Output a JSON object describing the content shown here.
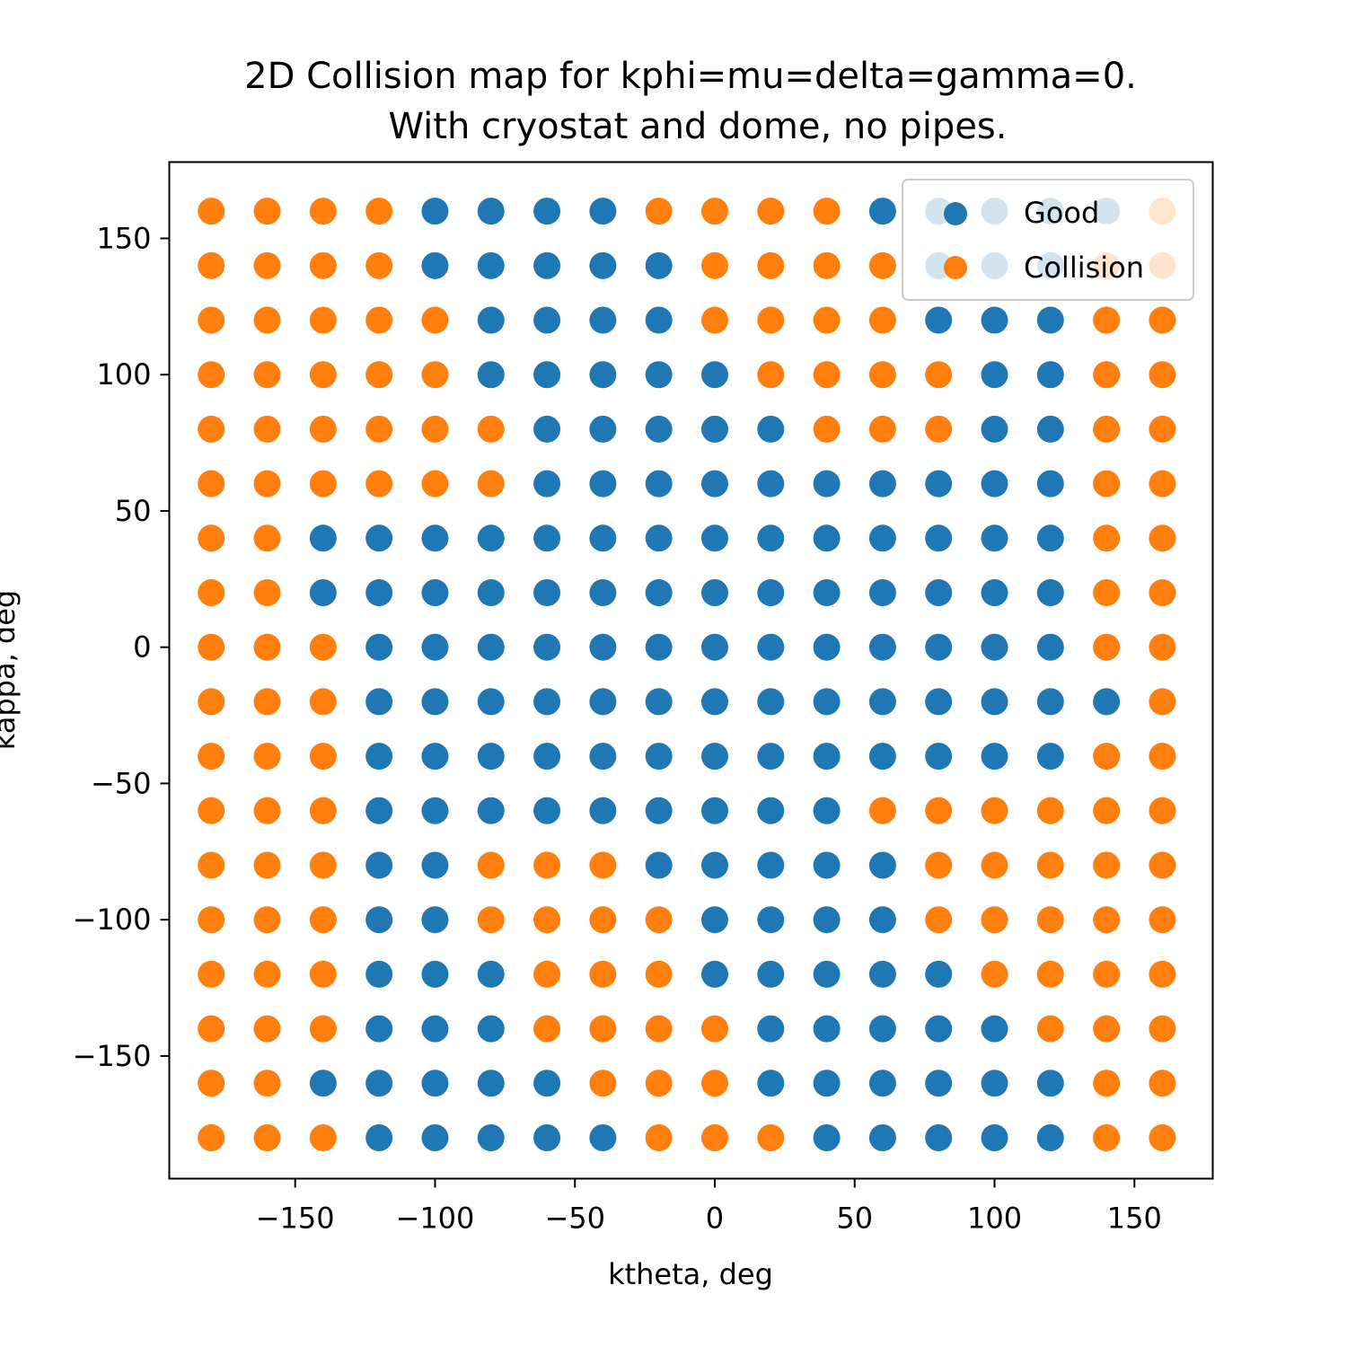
{
  "chart_data": {
    "type": "scatter",
    "title": [
      "2D Collision map for kphi=mu=delta=gamma=0.",
      "With cryostat and dome, no pipes."
    ],
    "xlabel": "ktheta, deg",
    "ylabel": "kappa, deg",
    "xlim": [
      -195,
      178
    ],
    "ylim": [
      -195,
      178
    ],
    "xticks": [
      -150,
      -100,
      -50,
      0,
      50,
      100,
      150
    ],
    "yticks": [
      -150,
      -100,
      -50,
      0,
      50,
      100,
      150
    ],
    "tick_labels": {
      "x": [
        "−150",
        "−100",
        "−50",
        "0",
        "50",
        "100",
        "150"
      ],
      "y": [
        "−150",
        "−100",
        "−50",
        "0",
        "50",
        "100",
        "150"
      ]
    },
    "grid": false,
    "legend_position": "top-right",
    "x_values": [
      -180,
      -160,
      -140,
      -120,
      -100,
      -80,
      -60,
      -40,
      -20,
      0,
      20,
      40,
      60,
      80,
      100,
      120,
      140,
      160
    ],
    "y_values": [
      160,
      140,
      120,
      100,
      80,
      60,
      40,
      20,
      0,
      -20,
      -40,
      -60,
      -80,
      -100,
      -120,
      -140,
      -160,
      -180
    ],
    "grid_status_rows": [
      "CCCCGGGGCCCCGGGGGC",
      "CCCCGGGGGCCCCGGGCC",
      "CCCCCGGGGCCCCGGGCC",
      "CCCCCGGGGGCCCCGGCC",
      "CCCCCCGGGGGCCCGGCC",
      "CCCCCCGGGGGGGGGGCC",
      "CCGGGGGGGGGGGGGGCC",
      "CCGGGGGGGGGGGGGGCC",
      "CCCGGGGGGGGGGGGGCC",
      "CCCGGGGGGGGGGGGGGC",
      "CCCGGGGGGGGGGGGGCC",
      "CCCGGGGGGGGGCCCCCC",
      "CCCGGCCCGGGGGCCCCC",
      "CCCGGCCCCGGGGCCCCC",
      "CCCGGGCCCGGGGGCCCC",
      "CCCGGGCCCCGGGGGCCC",
      "CCGGGGGCCCGGGGGGCC",
      "CCCGGGGGCCCGGGGGCC"
    ],
    "series": [
      {
        "name": "Good",
        "code": "G",
        "color": "#1f77b4"
      },
      {
        "name": "Collision",
        "code": "C",
        "color": "#ff7f0e"
      }
    ]
  }
}
